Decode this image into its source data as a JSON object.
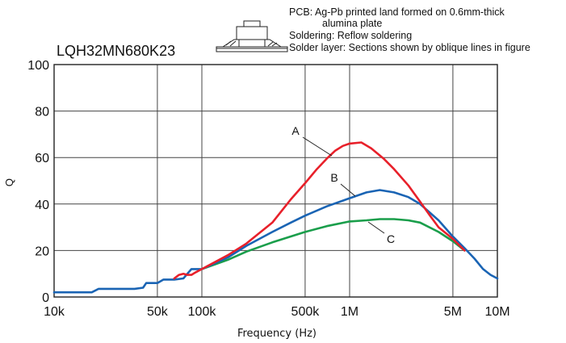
{
  "chart_data": {
    "type": "line",
    "title": "LQH32MN680K23",
    "xlabel": "Frequency (Hz)",
    "ylabel": "Q",
    "xscale": "log",
    "xlim": [
      10000,
      10000000
    ],
    "ylim": [
      0,
      100
    ],
    "x_ticks": [
      {
        "value": 10000,
        "label": "10k"
      },
      {
        "value": 50000,
        "label": "50k"
      },
      {
        "value": 100000,
        "label": "100k"
      },
      {
        "value": 500000,
        "label": "500k"
      },
      {
        "value": 1000000,
        "label": "1M"
      },
      {
        "value": 5000000,
        "label": "5M"
      },
      {
        "value": 10000000,
        "label": "10M"
      }
    ],
    "y_ticks": [
      0,
      20,
      40,
      60,
      80,
      100
    ],
    "grid": true,
    "notes": [
      "PCB: Ag-Pb printed land formed on 0.6mm-thick",
      "alumina plate",
      "Soldering: Reflow soldering",
      "Solder layer: Sections shown by oblique lines in figure"
    ],
    "series": [
      {
        "name": "A",
        "color": "#e8202a",
        "points": [
          [
            65000,
            8
          ],
          [
            70000,
            9.5
          ],
          [
            75000,
            10
          ],
          [
            80000,
            9.5
          ],
          [
            85000,
            9.5
          ],
          [
            90000,
            10.5
          ],
          [
            100000,
            12
          ],
          [
            150000,
            18
          ],
          [
            200000,
            23
          ],
          [
            300000,
            32
          ],
          [
            400000,
            42
          ],
          [
            500000,
            49
          ],
          [
            600000,
            55
          ],
          [
            700000,
            59.5
          ],
          [
            800000,
            63
          ],
          [
            900000,
            65
          ],
          [
            1000000,
            66
          ],
          [
            1200000,
            66.5
          ],
          [
            1400000,
            64
          ],
          [
            1700000,
            59.5
          ],
          [
            2000000,
            55
          ],
          [
            2500000,
            48
          ],
          [
            3000000,
            41
          ],
          [
            3500000,
            35
          ],
          [
            4000000,
            30
          ],
          [
            5000000,
            25
          ],
          [
            6000000,
            20
          ]
        ]
      },
      {
        "name": "B",
        "color": "#1a64b4",
        "points": [
          [
            10000,
            2
          ],
          [
            18000,
            2
          ],
          [
            20000,
            3.5
          ],
          [
            30000,
            3.5
          ],
          [
            35000,
            3.5
          ],
          [
            40000,
            4
          ],
          [
            42000,
            6
          ],
          [
            50000,
            6
          ],
          [
            55000,
            7.5
          ],
          [
            65000,
            7.5
          ],
          [
            75000,
            8
          ],
          [
            85000,
            12
          ],
          [
            100000,
            12
          ],
          [
            150000,
            17
          ],
          [
            200000,
            22
          ],
          [
            300000,
            28
          ],
          [
            400000,
            32
          ],
          [
            500000,
            35
          ],
          [
            700000,
            39
          ],
          [
            1000000,
            42.5
          ],
          [
            1300000,
            45
          ],
          [
            1600000,
            46
          ],
          [
            2000000,
            45
          ],
          [
            2500000,
            43
          ],
          [
            3000000,
            40
          ],
          [
            4000000,
            33
          ],
          [
            5000000,
            26
          ],
          [
            6000000,
            21
          ],
          [
            7000000,
            16.5
          ],
          [
            8000000,
            12
          ],
          [
            9000000,
            9.5
          ],
          [
            10000000,
            8
          ]
        ]
      },
      {
        "name": "C",
        "color": "#1a9e4b",
        "points": [
          [
            100000,
            12
          ],
          [
            150000,
            16
          ],
          [
            200000,
            19.5
          ],
          [
            300000,
            23.5
          ],
          [
            500000,
            28
          ],
          [
            700000,
            30.5
          ],
          [
            1000000,
            32.5
          ],
          [
            1300000,
            33
          ],
          [
            1600000,
            33.5
          ],
          [
            2000000,
            33.5
          ],
          [
            2500000,
            33
          ],
          [
            3000000,
            32
          ],
          [
            4000000,
            28
          ],
          [
            5000000,
            24
          ],
          [
            6000000,
            20
          ]
        ]
      }
    ],
    "annotations": [
      {
        "label": "A",
        "series": "A"
      },
      {
        "label": "B",
        "series": "B"
      },
      {
        "label": "C",
        "series": "C"
      }
    ]
  }
}
